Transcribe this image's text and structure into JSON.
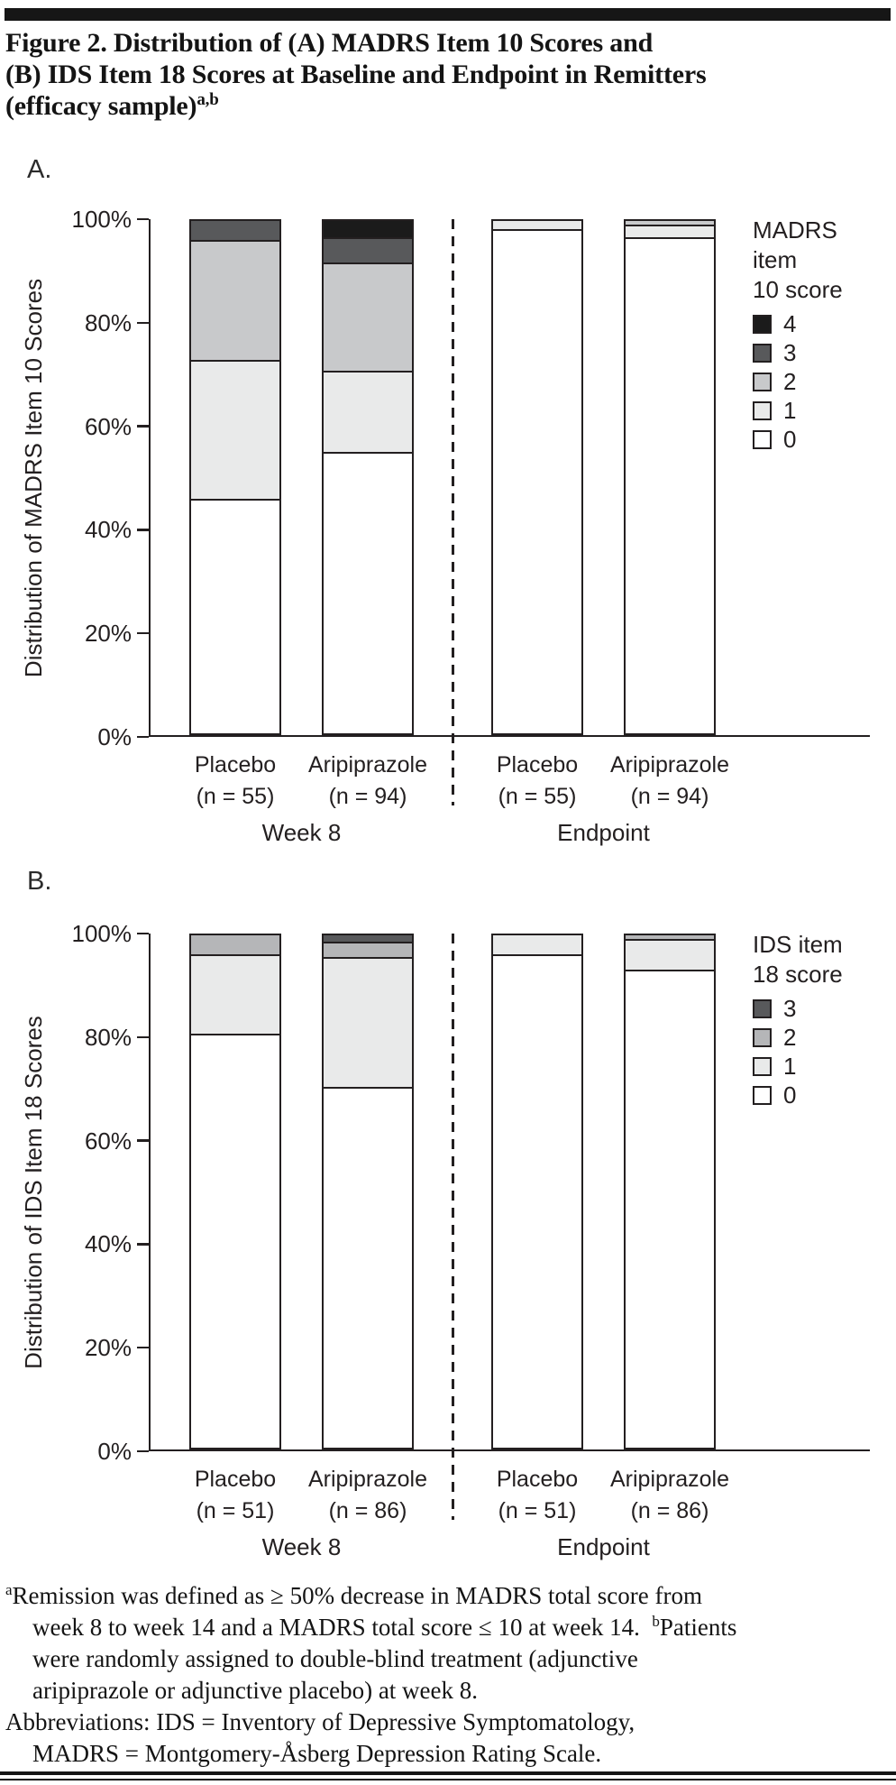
{
  "figure": {
    "title_lines": [
      "Figure 2. Distribution of (A) MADRS Item 10 Scores and",
      "(B) IDS Item 18 Scores at Baseline and Endpoint in Remitters",
      "(efficacy sample)"
    ],
    "title_superscript": "a,b"
  },
  "colors": {
    "ink": "#231f20",
    "score_4_black": "#1b1b1b",
    "score_3_dark_gray": "#58595b",
    "score_2_mid_gray": "#c8c9cb",
    "score_1_light_gray": "#e9eaea",
    "score_0_white": "#ffffff"
  },
  "chart_data": [
    {
      "type": "bar",
      "stacked": true,
      "panel_label": "A.",
      "ylabel": "Distribution of MADRS Item 10 Scores",
      "ylim": [
        0,
        100
      ],
      "grid": false,
      "y_tick_labels": [
        "100%",
        "80%",
        "60%",
        "40%",
        "20%",
        "0%"
      ],
      "legend_position": "right",
      "legend_title_lines": [
        "MADRS item",
        "10 score"
      ],
      "group_labels": [
        "Week 8",
        "Endpoint"
      ],
      "categories": [
        {
          "label": "Placebo",
          "n": "(n = 55)",
          "group": "Week 8"
        },
        {
          "label": "Aripiprazole",
          "n": "(n = 94)",
          "group": "Week 8"
        },
        {
          "label": "Placebo",
          "n": "(n = 55)",
          "group": "Endpoint"
        },
        {
          "label": "Aripiprazole",
          "n": "(n = 94)",
          "group": "Endpoint"
        }
      ],
      "series": [
        {
          "name": "0",
          "color": "#ffffff",
          "values": [
            45.5,
            54.5,
            98,
            96.5
          ]
        },
        {
          "name": "1",
          "color": "#e9eaea",
          "values": [
            27,
            16,
            2,
            2.5
          ]
        },
        {
          "name": "2",
          "color": "#c8c9cb",
          "values": [
            23.5,
            21,
            0,
            1
          ]
        },
        {
          "name": "3",
          "color": "#58595b",
          "values": [
            4,
            5,
            0,
            0
          ]
        },
        {
          "name": "4",
          "color": "#1b1b1b",
          "values": [
            0,
            3.5,
            0,
            0
          ]
        }
      ]
    },
    {
      "type": "bar",
      "stacked": true,
      "panel_label": "B.",
      "ylabel": "Distribution of IDS Item 18 Scores",
      "ylim": [
        0,
        100
      ],
      "grid": false,
      "y_tick_labels": [
        "100%",
        "80%",
        "60%",
        "40%",
        "20%",
        "0%"
      ],
      "legend_position": "right",
      "legend_title_lines": [
        "IDS item",
        "18 score"
      ],
      "group_labels": [
        "Week 8",
        "Endpoint"
      ],
      "categories": [
        {
          "label": "Placebo",
          "n": "(n = 51)",
          "group": "Week 8"
        },
        {
          "label": "Aripiprazole",
          "n": "(n = 86)",
          "group": "Week 8"
        },
        {
          "label": "Placebo",
          "n": "(n = 51)",
          "group": "Endpoint"
        },
        {
          "label": "Aripiprazole",
          "n": "(n = 86)",
          "group": "Endpoint"
        }
      ],
      "series": [
        {
          "name": "0",
          "color": "#ffffff",
          "values": [
            80.5,
            70,
            96,
            93
          ]
        },
        {
          "name": "1",
          "color": "#e9eaea",
          "values": [
            15.5,
            25.5,
            4,
            6
          ]
        },
        {
          "name": "2",
          "color": "#b5b6b8",
          "values": [
            4,
            3,
            0,
            1
          ]
        },
        {
          "name": "3",
          "color": "#58595b",
          "values": [
            0,
            1.5,
            0,
            0
          ]
        }
      ]
    }
  ],
  "footnotes": {
    "lines": [
      {
        "indent": false,
        "parts": [
          {
            "sup": "a"
          },
          {
            "text": "Remission was defined as ≥ 50% decrease in MADRS total score from"
          }
        ]
      },
      {
        "indent": true,
        "parts": [
          {
            "text": "week 8 to week 14 and a MADRS total score ≤ 10 at week 14.  "
          },
          {
            "sup": "b"
          },
          {
            "text": "Patients"
          }
        ]
      },
      {
        "indent": true,
        "parts": [
          {
            "text": "were randomly assigned to double-blind treatment (adjunctive"
          }
        ]
      },
      {
        "indent": true,
        "parts": [
          {
            "text": "aripiprazole or adjunctive placebo) at week 8."
          }
        ]
      },
      {
        "indent": false,
        "parts": [
          {
            "text": "Abbreviations: IDS = Inventory of Depressive Symptomatology,"
          }
        ]
      },
      {
        "indent": true,
        "parts": [
          {
            "text": "MADRS = Montgomery-Åsberg Depression Rating Scale."
          }
        ]
      }
    ]
  }
}
